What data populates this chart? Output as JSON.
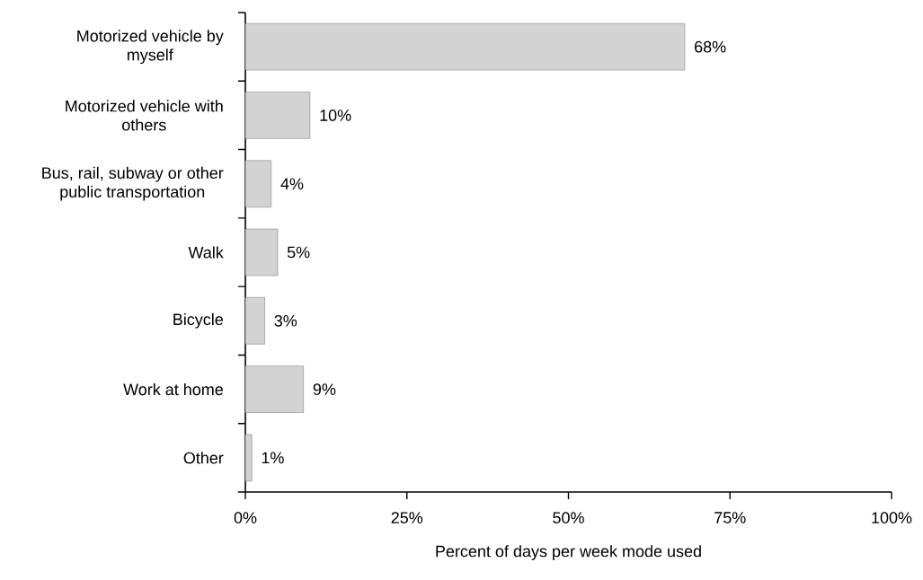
{
  "chart_data": {
    "type": "bar",
    "orientation": "horizontal",
    "xlabel": "Percent of days per week mode used",
    "categories": [
      "Motorized vehicle by myself",
      "Motorized vehicle with others",
      "Bus, rail, subway or other public transportation",
      "Walk",
      "Bicycle",
      "Work at home",
      "Other"
    ],
    "values": [
      68,
      10,
      4,
      5,
      3,
      9,
      1
    ],
    "value_labels": [
      "68%",
      "10%",
      "4%",
      "5%",
      "3%",
      "9%",
      "1%"
    ],
    "color": "#d3d3d3",
    "xlim": [
      0,
      100
    ],
    "xticks": [
      {
        "value": 0,
        "label": "0%"
      },
      {
        "value": 25,
        "label": "25%"
      },
      {
        "value": 50,
        "label": "50%"
      },
      {
        "value": 75,
        "label": "75%"
      },
      {
        "value": 100,
        "label": "100%"
      }
    ]
  }
}
